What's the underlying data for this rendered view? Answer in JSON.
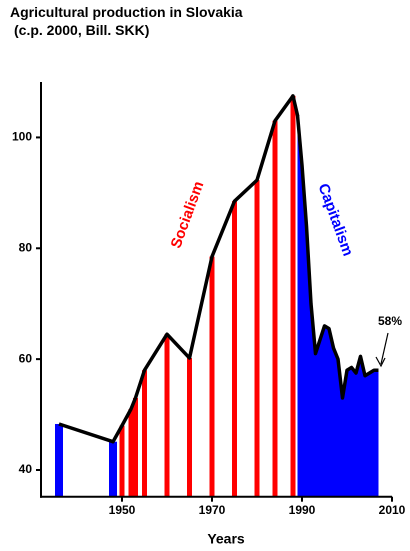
{
  "chart_data": {
    "type": "line",
    "title": "Agricultural production in Slovakia",
    "subtitle": "(c.p. 2000, Bill. SKK)",
    "x_label": "Years",
    "xlim": [
      1932,
      2010
    ],
    "xticks": [
      1950,
      1970,
      1990,
      2010
    ],
    "ylim": [
      35,
      110
    ],
    "yticks": [
      40,
      60,
      80,
      100
    ],
    "line_color": "#000000",
    "series": [
      {
        "style": "bar",
        "color": "#0000ff",
        "x": [
          1936,
          1948
        ],
        "values": [
          48.3,
          45.1
        ]
      },
      {
        "name": "Socialism",
        "style": "bar",
        "color": "#ff0000",
        "x": [
          1950,
          1952,
          1953,
          1955,
          1960,
          1965,
          1970,
          1975,
          1980,
          1984,
          1988
        ],
        "values": [
          48,
          51,
          53,
          58,
          64.5,
          60.2,
          78.5,
          88.5,
          92.3,
          103,
          107.5
        ]
      },
      {
        "name": "Capitalism",
        "style": "area",
        "color": "#0000ff",
        "x": [
          1989,
          1990,
          1991,
          1992,
          1993,
          1994,
          1995,
          1996,
          1997,
          1998,
          1999,
          2000,
          2001,
          2002,
          2003,
          2004,
          2005,
          2006,
          2007
        ],
        "values": [
          104,
          95,
          84,
          70,
          61,
          63.5,
          66,
          65.5,
          62,
          60,
          53,
          58,
          58.5,
          57.5,
          60.5,
          57,
          57.5,
          58,
          58
        ]
      }
    ],
    "annotation": "58%"
  }
}
